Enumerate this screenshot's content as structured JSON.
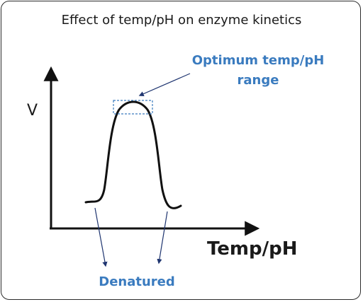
{
  "title": "Effect of temp/pH on enzyme kinetics",
  "y_axis_label": "V",
  "x_axis_label": "Temp/pH",
  "optimum_label": {
    "line1": "Optimum temp/pH",
    "line2": "range"
  },
  "denatured_label": "Denatured",
  "colors": {
    "annotation": "#3a7bbf",
    "arrow": "#1f3570",
    "curve": "#111111",
    "axis": "#111111",
    "border": "#2c2c2c"
  }
}
